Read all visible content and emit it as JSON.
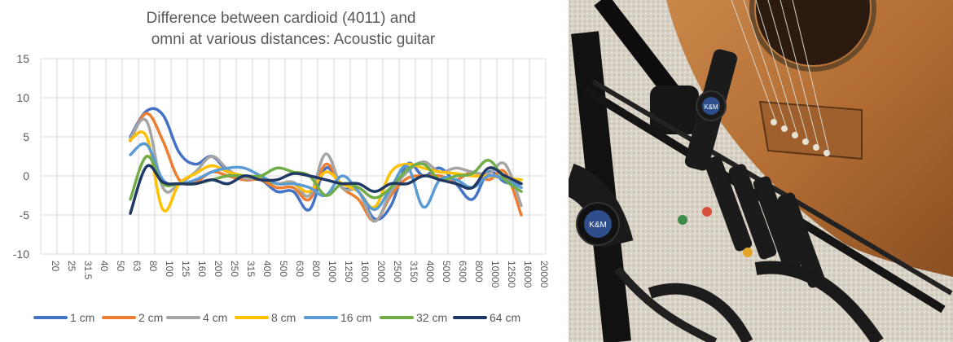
{
  "chart_data": {
    "type": "line",
    "title_line1": "Difference between cardioid (4011) and",
    "title_line2": "omni at various distances: Acoustic guitar",
    "ylim": [
      -10,
      15
    ],
    "yticks": [
      -10,
      -5,
      0,
      5,
      10,
      15
    ],
    "grid": true,
    "legend_position": "bottom",
    "categories": [
      "20",
      "25",
      "31.5",
      "40",
      "50",
      "63",
      "80",
      "100",
      "125",
      "160",
      "200",
      "250",
      "315",
      "400",
      "500",
      "630",
      "800",
      "1000",
      "1250",
      "1600",
      "2000",
      "2500",
      "3150",
      "4000",
      "5000",
      "6300",
      "8000",
      "10000",
      "12500",
      "16000",
      "20000"
    ],
    "series": [
      {
        "name": "1 cm",
        "color": "#4472C4",
        "values": [
          null,
          null,
          null,
          null,
          null,
          5.0,
          8.3,
          7.8,
          3.0,
          1.5,
          2.5,
          0.5,
          -0.5,
          -0.5,
          -2.0,
          -2.0,
          -4.3,
          1.0,
          -1.5,
          -2.0,
          -5.5,
          -3.8,
          1.5,
          0.0,
          1.0,
          -1.0,
          -3.0,
          0.5,
          -0.8,
          -1.0,
          null
        ]
      },
      {
        "name": "2 cm",
        "color": "#ED7D31",
        "values": [
          null,
          null,
          null,
          null,
          null,
          4.5,
          8.0,
          4.5,
          -0.5,
          -0.8,
          0.5,
          0.0,
          -0.5,
          -0.5,
          -1.5,
          -1.5,
          -3.0,
          1.5,
          -1.5,
          -3.0,
          -5.8,
          -2.5,
          -0.3,
          0.0,
          0.0,
          -0.5,
          0.5,
          -0.5,
          0.5,
          -5.0,
          null
        ]
      },
      {
        "name": "4 cm",
        "color": "#A5A5A5",
        "values": [
          null,
          null,
          null,
          null,
          null,
          4.8,
          7.0,
          -1.5,
          -1.0,
          0.5,
          2.5,
          0.8,
          -0.3,
          -0.3,
          -1.0,
          -0.8,
          -2.5,
          2.8,
          -1.5,
          -2.0,
          -5.8,
          -2.0,
          0.5,
          1.8,
          0.5,
          1.0,
          0.5,
          0.3,
          1.5,
          -3.8,
          null
        ]
      },
      {
        "name": "8 cm",
        "color": "#FFC000",
        "values": [
          null,
          null,
          null,
          null,
          null,
          4.6,
          5.0,
          -4.3,
          -1.0,
          0.3,
          1.3,
          0.5,
          0.0,
          -0.3,
          -1.0,
          -1.0,
          -2.0,
          0.5,
          -1.0,
          -2.0,
          -4.0,
          0.5,
          1.5,
          1.0,
          0.5,
          0.3,
          0.0,
          0.0,
          -0.3,
          -0.5,
          null
        ]
      },
      {
        "name": "16 cm",
        "color": "#5B9BD5",
        "values": [
          null,
          null,
          null,
          null,
          null,
          2.7,
          4.0,
          -0.5,
          -1.0,
          -0.5,
          0.5,
          1.0,
          1.0,
          0.0,
          -1.0,
          -1.0,
          -1.5,
          -2.5,
          0.0,
          -2.0,
          -4.3,
          -1.5,
          1.2,
          -4.0,
          -0.5,
          -0.5,
          -1.5,
          0.0,
          -0.5,
          -1.5,
          null
        ]
      },
      {
        "name": "32 cm",
        "color": "#70AD47",
        "values": [
          null,
          null,
          null,
          null,
          null,
          -3.0,
          2.5,
          -1.0,
          -1.0,
          -1.0,
          -0.5,
          0.0,
          0.0,
          0.0,
          1.0,
          0.5,
          0.0,
          -2.5,
          -1.0,
          -1.5,
          -2.8,
          -1.5,
          0.8,
          1.5,
          -0.5,
          0.0,
          0.3,
          2.0,
          -0.5,
          -2.0,
          null
        ]
      },
      {
        "name": "64 cm",
        "color": "#203864",
        "values": [
          null,
          null,
          null,
          null,
          null,
          -4.8,
          1.2,
          -0.8,
          -1.0,
          -1.0,
          -0.5,
          -1.0,
          0.0,
          -0.5,
          -0.5,
          0.3,
          0.0,
          -0.5,
          -1.0,
          -1.0,
          -2.0,
          -1.0,
          -1.0,
          0.0,
          -0.5,
          -1.0,
          -1.5,
          1.0,
          0.0,
          -1.0,
          null
        ]
      }
    ]
  },
  "photo": {
    "description_icon": "microphones-guitar-photo-icon",
    "badge_text": "K&M"
  }
}
